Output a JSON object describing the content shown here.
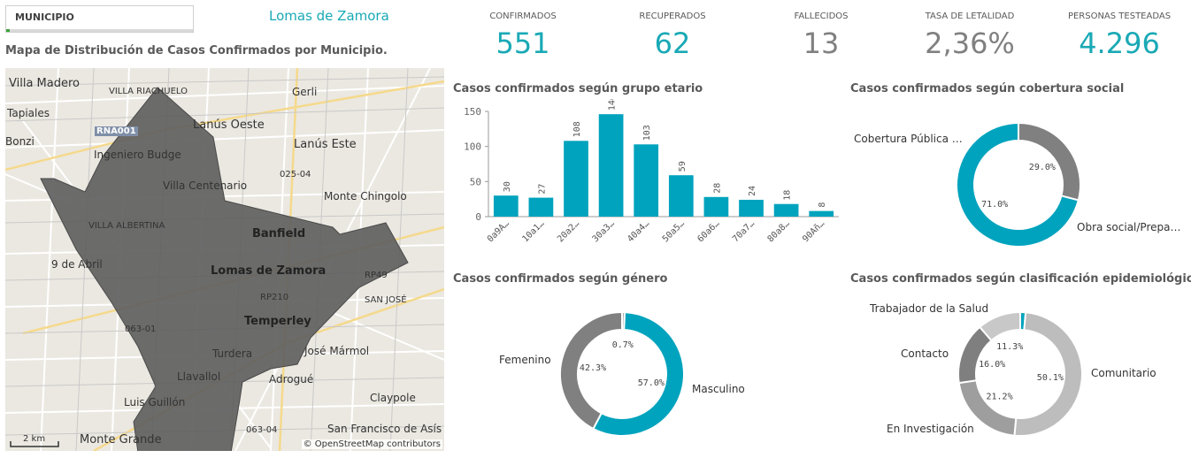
{
  "filter": {
    "label": "MUNICIPIO",
    "value": "Lomas de Zamora"
  },
  "map": {
    "title": "Mapa de Distribución de Casos Confirmados por Municipio.",
    "scale_label": "2 km",
    "attribution": "© OpenStreetMap contributors",
    "places": {
      "villa_madero": "Villa Madero",
      "villa_riachuelo": "VILLA RIACHUELO",
      "gerli": "Gerli",
      "tapiales": "Tapiales",
      "lanus_oeste": "Lanús Oeste",
      "rna001": "RNA001",
      "lanus_este": "Lanús Este",
      "bonzi": "Bonzi",
      "ingeniero_budge": "Ingeniero Budge",
      "r025_04": "025-04",
      "villa_centenario": "Villa Centenario",
      "monte_chingolo": "Monte Chingolo",
      "villa_albertina": "VILLA ALBERTINA",
      "banfield": "Banfield",
      "nueve_de_abril": "9 de Abril",
      "lomas_de_zamora": "Lomas de Zamora",
      "rp49": "RP49",
      "rp210": "RP210",
      "san_jose": "SAN JOSÉ",
      "temperley": "Temperley",
      "r063_01": "063-01",
      "turdera": "Turdera",
      "jose_marmol": "José Mármol",
      "llavallol": "Llavallol",
      "adrogue": "Adrogué",
      "claypole": "Claypole",
      "luis_guillon": "Luis Guillón",
      "r063_04": "063-04",
      "san_francisco": "San Francisco de Asís",
      "monte_grande": "Monte Grande"
    }
  },
  "kpis": [
    {
      "label": "CONFIRMADOS",
      "value": "551",
      "color": "#19a9b5"
    },
    {
      "label": "RECUPERADOS",
      "value": "62",
      "color": "#19a9b5"
    },
    {
      "label": "FALLECIDOS",
      "value": "13",
      "color": "#808080"
    },
    {
      "label": "TASA DE LETALIDAD",
      "value": "2,36%",
      "color": "#808080"
    },
    {
      "label": "PERSONAS TESTEADAS",
      "value": "4.296",
      "color": "#19a9b5"
    }
  ],
  "chart_data": [
    {
      "type": "bar",
      "title": "Casos confirmados según grupo etario",
      "categories": [
        "0a9A…",
        "10a1…",
        "20a2…",
        "30a3…",
        "40a4…",
        "50a5…",
        "60a6…",
        "70a7…",
        "80a8…",
        "90Añ…"
      ],
      "values": [
        30,
        27,
        108,
        146,
        103,
        59,
        28,
        24,
        18,
        8
      ],
      "ylim": [
        0,
        150
      ],
      "yticks": [
        0,
        50,
        100,
        150
      ],
      "color": "#00a3bd"
    },
    {
      "type": "pie",
      "title": "Casos confirmados según cobertura social",
      "slices": [
        {
          "label": "Cobertura Pública …",
          "value": 29.0,
          "text": "29.0%",
          "color": "#808080"
        },
        {
          "label": "Obra social/Prepa…",
          "value": 71.0,
          "text": "71.0%",
          "color": "#00a3bd"
        }
      ]
    },
    {
      "type": "pie",
      "title": "Casos confirmados según género",
      "slices": [
        {
          "label": "",
          "value": 0.7,
          "text": "0.7%",
          "color": "#a6a6a6"
        },
        {
          "label": "Masculino",
          "value": 57.0,
          "text": "57.0%",
          "color": "#00a3bd"
        },
        {
          "label": "Femenino",
          "value": 42.3,
          "text": "42.3%",
          "color": "#808080"
        }
      ]
    },
    {
      "type": "pie",
      "title": "Casos confirmados según clasificación epidemiológica",
      "slices": [
        {
          "label": "Trabajador de la Salud",
          "value": 1.4,
          "text": "",
          "color": "#00a3bd"
        },
        {
          "label": "Comunitario",
          "value": 50.1,
          "text": "50.1%",
          "color": "#bdbdbd"
        },
        {
          "label": "En Investigación",
          "value": 21.2,
          "text": "21.2%",
          "color": "#9e9e9e"
        },
        {
          "label": "Contacto",
          "value": 16.0,
          "text": "16.0%",
          "color": "#7f7f7f"
        },
        {
          "label": "",
          "value": 11.3,
          "text": "11.3%",
          "color": "#c8c8c8"
        }
      ]
    }
  ]
}
